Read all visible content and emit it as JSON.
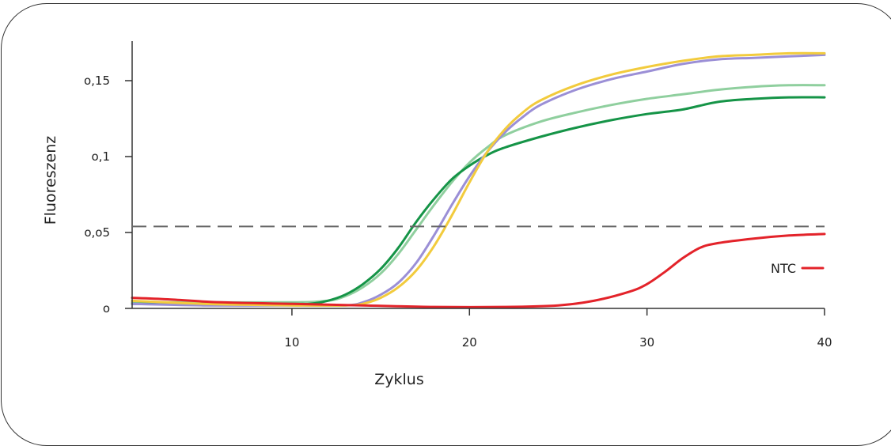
{
  "chart_data": {
    "type": "line",
    "xlabel": "Zyklus",
    "ylabel": "Fluoreszenz",
    "xlim": [
      1,
      40
    ],
    "ylim": [
      0,
      0.17
    ],
    "x_ticks": [
      10,
      20,
      30,
      40
    ],
    "y_ticks": [
      0,
      0.05,
      0.1,
      0.15
    ],
    "x_tick_labels": [
      "10",
      "20",
      "30",
      "40"
    ],
    "y_tick_labels": [
      "o",
      "o,o5",
      "o,1",
      "o,15"
    ],
    "threshold": 0.054,
    "series": [
      {
        "color": "#8fcf9e",
        "points": [
          [
            1,
            0.004
          ],
          [
            5,
            0.004
          ],
          [
            10,
            0.004
          ],
          [
            12,
            0.005
          ],
          [
            13,
            0.008
          ],
          [
            14,
            0.014
          ],
          [
            15,
            0.023
          ],
          [
            16,
            0.036
          ],
          [
            17,
            0.052
          ],
          [
            18,
            0.068
          ],
          [
            19,
            0.083
          ],
          [
            20,
            0.096
          ],
          [
            21,
            0.106
          ],
          [
            22,
            0.114
          ],
          [
            24,
            0.123
          ],
          [
            26,
            0.129
          ],
          [
            28,
            0.134
          ],
          [
            30,
            0.138
          ],
          [
            32,
            0.141
          ],
          [
            34,
            0.144
          ],
          [
            36,
            0.146
          ],
          [
            38,
            0.147
          ],
          [
            40,
            0.147
          ]
        ]
      },
      {
        "color": "#159447",
        "points": [
          [
            1,
            0.003
          ],
          [
            5,
            0.003
          ],
          [
            10,
            0.003
          ],
          [
            11,
            0.003
          ],
          [
            12,
            0.005
          ],
          [
            13,
            0.009
          ],
          [
            14,
            0.016
          ],
          [
            15,
            0.026
          ],
          [
            16,
            0.04
          ],
          [
            17,
            0.057
          ],
          [
            18,
            0.072
          ],
          [
            19,
            0.085
          ],
          [
            20,
            0.094
          ],
          [
            21,
            0.101
          ],
          [
            22,
            0.106
          ],
          [
            24,
            0.113
          ],
          [
            26,
            0.119
          ],
          [
            28,
            0.124
          ],
          [
            30,
            0.128
          ],
          [
            32,
            0.131
          ],
          [
            34,
            0.136
          ],
          [
            36,
            0.138
          ],
          [
            38,
            0.139
          ],
          [
            40,
            0.139
          ]
        ]
      },
      {
        "color": "#9b8fd6",
        "points": [
          [
            1,
            0.003
          ],
          [
            5,
            0.002
          ],
          [
            10,
            0.002
          ],
          [
            13,
            0.002
          ],
          [
            14,
            0.004
          ],
          [
            15,
            0.009
          ],
          [
            16,
            0.017
          ],
          [
            17,
            0.03
          ],
          [
            18,
            0.048
          ],
          [
            19,
            0.068
          ],
          [
            20,
            0.087
          ],
          [
            21,
            0.103
          ],
          [
            22,
            0.116
          ],
          [
            23,
            0.126
          ],
          [
            24,
            0.134
          ],
          [
            26,
            0.144
          ],
          [
            28,
            0.151
          ],
          [
            30,
            0.156
          ],
          [
            32,
            0.161
          ],
          [
            34,
            0.164
          ],
          [
            36,
            0.165
          ],
          [
            38,
            0.166
          ],
          [
            40,
            0.167
          ]
        ]
      },
      {
        "color": "#f2cb3d",
        "points": [
          [
            1,
            0.005
          ],
          [
            5,
            0.003
          ],
          [
            10,
            0.002
          ],
          [
            13,
            0.002
          ],
          [
            14,
            0.003
          ],
          [
            15,
            0.007
          ],
          [
            16,
            0.014
          ],
          [
            17,
            0.025
          ],
          [
            18,
            0.041
          ],
          [
            19,
            0.061
          ],
          [
            20,
            0.083
          ],
          [
            21,
            0.103
          ],
          [
            22,
            0.118
          ],
          [
            23,
            0.129
          ],
          [
            24,
            0.137
          ],
          [
            26,
            0.147
          ],
          [
            28,
            0.154
          ],
          [
            30,
            0.159
          ],
          [
            32,
            0.163
          ],
          [
            34,
            0.166
          ],
          [
            36,
            0.167
          ],
          [
            38,
            0.168
          ],
          [
            40,
            0.168
          ]
        ]
      },
      {
        "name": "NTC",
        "color": "#e3232a",
        "points": [
          [
            1,
            0.007
          ],
          [
            3,
            0.006
          ],
          [
            6,
            0.004
          ],
          [
            10,
            0.003
          ],
          [
            14,
            0.002
          ],
          [
            18,
            0.001
          ],
          [
            22,
            0.001
          ],
          [
            25,
            0.002
          ],
          [
            27,
            0.005
          ],
          [
            29,
            0.011
          ],
          [
            30,
            0.016
          ],
          [
            31,
            0.024
          ],
          [
            32,
            0.033
          ],
          [
            33,
            0.04
          ],
          [
            34,
            0.043
          ],
          [
            36,
            0.046
          ],
          [
            38,
            0.048
          ],
          [
            40,
            0.049
          ]
        ]
      }
    ],
    "legend": {
      "label": "NTC",
      "color": "#e3232a",
      "placement": "right"
    },
    "grid": false
  }
}
